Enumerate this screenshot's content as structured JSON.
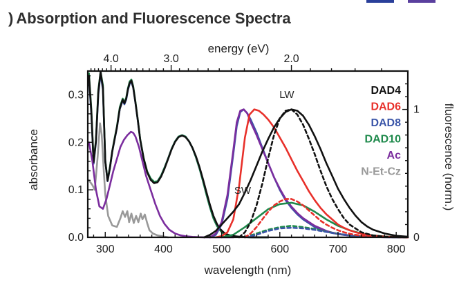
{
  "slide": {
    "title_prefix": ")",
    "title": "Absorption and Fluorescence Spectra"
  },
  "chart_data": {
    "type": "line",
    "xlabel": "wavelength (nm)",
    "x2label": "energy (eV)",
    "ylabel": "absorbance",
    "y2label": "fluorescence (norm.)",
    "xlim": [
      270,
      820
    ],
    "ylim": [
      0,
      0.35
    ],
    "y2lim": [
      0,
      1.3
    ],
    "x_ticks": [
      300,
      400,
      500,
      600,
      700,
      800
    ],
    "y_ticks": [
      0.0,
      0.1,
      0.2,
      0.3
    ],
    "y_tick_labels": [
      "0.0",
      "0.1",
      "0.2",
      "0.3"
    ],
    "y2_ticks": [
      0,
      1
    ],
    "energy_ticks": [
      4.0,
      3.0,
      2.0
    ],
    "energy_tick_labels": [
      "4.0",
      "3.0",
      "2.0"
    ],
    "energy_minor_ticks": [
      4.5,
      4.4,
      4.3,
      4.2,
      4.1,
      3.9,
      3.8,
      3.7,
      3.6,
      3.5,
      3.4,
      3.3,
      3.2,
      3.1,
      2.9,
      2.8,
      2.7,
      2.6,
      2.5,
      2.4,
      2.3,
      2.2,
      2.1,
      1.9,
      1.8,
      1.7,
      1.6,
      1.5
    ],
    "legend_position": "top-right",
    "legend": [
      {
        "label": "DAD4",
        "color": "#111111"
      },
      {
        "label": "DAD6",
        "color": "#e8302a"
      },
      {
        "label": "DAD8",
        "color": "#3a55a8"
      },
      {
        "label": "DAD10",
        "color": "#1f8a4c"
      },
      {
        "label": "Ac",
        "color": "#7b2d9e"
      },
      {
        "label": "N-Et-Cz",
        "color": "#999999"
      }
    ],
    "annotations": [
      {
        "text": "LW",
        "x": 612,
        "y2": 1.09
      },
      {
        "text": "SW",
        "x": 536,
        "y2": 0.34
      }
    ],
    "series": [
      {
        "name": "N-Et-Cz absorbance",
        "axis": "left",
        "color": "#999999",
        "dash": "",
        "x": [
          272,
          278,
          282,
          287,
          291,
          294,
          297,
          300,
          305,
          312,
          320,
          326,
          330,
          334,
          338,
          341,
          345,
          349,
          353,
          357,
          361,
          364,
          368,
          372,
          376,
          382,
          390,
          400,
          408
        ],
        "y": [
          0.12,
          0.11,
          0.1,
          0.17,
          0.24,
          0.215,
          0.15,
          0.09,
          0.045,
          0.025,
          0.022,
          0.04,
          0.055,
          0.043,
          0.055,
          0.032,
          0.05,
          0.03,
          0.045,
          0.032,
          0.05,
          0.038,
          0.048,
          0.03,
          0.015,
          0.008,
          0.004,
          0.002,
          0.0
        ]
      },
      {
        "name": "DAD8 absorbance",
        "axis": "left",
        "color": "#3a55a8",
        "dash": "",
        "x": [
          272,
          276,
          280,
          284,
          288,
          292,
          296,
          300,
          304,
          308,
          312,
          316,
          320,
          325,
          330,
          333,
          336,
          339,
          342,
          345,
          348,
          352,
          356,
          360,
          366,
          372,
          378,
          384,
          390,
          396,
          402,
          408,
          414,
          420,
          426,
          432,
          438,
          444,
          450,
          456,
          462,
          468,
          474,
          480,
          486,
          492,
          498,
          502,
          506,
          510,
          515,
          520,
          525,
          530,
          535,
          540,
          545,
          550,
          555,
          560,
          565,
          570,
          575,
          580
        ],
        "y": [
          0.335,
          0.26,
          0.155,
          0.2,
          0.3,
          0.345,
          0.31,
          0.16,
          0.118,
          0.145,
          0.18,
          0.205,
          0.23,
          0.27,
          0.288,
          0.28,
          0.29,
          0.31,
          0.323,
          0.327,
          0.315,
          0.282,
          0.245,
          0.205,
          0.165,
          0.138,
          0.123,
          0.116,
          0.118,
          0.13,
          0.147,
          0.166,
          0.186,
          0.202,
          0.212,
          0.215,
          0.212,
          0.202,
          0.188,
          0.168,
          0.145,
          0.118,
          0.09,
          0.063,
          0.04,
          0.024,
          0.014,
          0.009,
          0.006,
          0.004,
          0.003,
          0.002,
          0.0015,
          0.001,
          0.0008,
          0.0005,
          0.0003,
          0.0002,
          0.0001,
          0.0,
          0.0,
          0.0,
          0.0,
          0.0
        ]
      },
      {
        "name": "DAD10 absorbance",
        "axis": "left",
        "color": "#1f8a4c",
        "dash": "",
        "x": [
          272,
          276,
          280,
          284,
          288,
          292,
          296,
          300,
          304,
          308,
          312,
          316,
          320,
          325,
          330,
          333,
          336,
          339,
          342,
          345,
          348,
          352,
          356,
          360,
          366,
          372,
          378,
          384,
          390,
          396,
          402,
          408,
          414,
          420,
          426,
          432,
          438,
          444,
          450,
          456,
          462,
          468,
          474,
          480,
          486,
          492,
          498,
          502,
          506,
          510,
          515,
          520,
          525,
          530,
          535,
          540,
          545,
          550,
          555,
          560,
          565,
          570,
          575,
          580
        ],
        "y": [
          0.345,
          0.27,
          0.16,
          0.205,
          0.31,
          0.355,
          0.32,
          0.162,
          0.12,
          0.148,
          0.182,
          0.208,
          0.233,
          0.274,
          0.292,
          0.284,
          0.294,
          0.314,
          0.328,
          0.332,
          0.318,
          0.285,
          0.247,
          0.207,
          0.167,
          0.139,
          0.124,
          0.117,
          0.118,
          0.13,
          0.147,
          0.166,
          0.186,
          0.202,
          0.212,
          0.215,
          0.212,
          0.202,
          0.188,
          0.168,
          0.145,
          0.118,
          0.09,
          0.063,
          0.04,
          0.024,
          0.014,
          0.009,
          0.006,
          0.004,
          0.003,
          0.002,
          0.0015,
          0.001,
          0.0008,
          0.0005,
          0.0003,
          0.0002,
          0.0001,
          0.0,
          0.0,
          0.0,
          0.0,
          0.0
        ]
      },
      {
        "name": "DAD4 absorbance",
        "axis": "left",
        "color": "#111111",
        "dash": "",
        "x": [
          272,
          276,
          280,
          284,
          288,
          292,
          296,
          300,
          304,
          308,
          312,
          316,
          320,
          325,
          330,
          333,
          336,
          339,
          342,
          345,
          348,
          352,
          356,
          360,
          366,
          372,
          378,
          384,
          390,
          396,
          402,
          408,
          414,
          420,
          426,
          432,
          438,
          444,
          450,
          456,
          462,
          468,
          474,
          480,
          486,
          492,
          498,
          502,
          506,
          510,
          515,
          520,
          525,
          530,
          535,
          540,
          545,
          550,
          555,
          560,
          565,
          570,
          575,
          580
        ],
        "y": [
          0.34,
          0.265,
          0.158,
          0.202,
          0.305,
          0.35,
          0.315,
          0.16,
          0.119,
          0.146,
          0.181,
          0.206,
          0.231,
          0.271,
          0.29,
          0.282,
          0.292,
          0.312,
          0.325,
          0.33,
          0.316,
          0.283,
          0.246,
          0.206,
          0.166,
          0.137,
          0.121,
          0.114,
          0.116,
          0.128,
          0.145,
          0.165,
          0.185,
          0.201,
          0.211,
          0.214,
          0.211,
          0.202,
          0.188,
          0.17,
          0.148,
          0.122,
          0.095,
          0.068,
          0.045,
          0.028,
          0.017,
          0.012,
          0.008,
          0.006,
          0.004,
          0.003,
          0.002,
          0.0015,
          0.001,
          0.0008,
          0.0005,
          0.0003,
          0.0002,
          0.0001,
          0.0,
          0.0,
          0.0,
          0.0
        ]
      },
      {
        "name": "Ac absorbance",
        "axis": "left",
        "color": "#7b2d9e",
        "dash": "",
        "x": [
          272,
          278,
          284,
          290,
          296,
          302,
          308,
          314,
          320,
          326,
          332,
          338,
          344,
          348,
          352,
          358,
          364,
          370,
          378,
          386,
          394,
          402,
          410,
          420,
          430,
          440,
          450,
          460,
          470,
          480,
          490,
          500,
          510,
          520
        ],
        "y": [
          0.2,
          0.16,
          0.1,
          0.065,
          0.06,
          0.08,
          0.11,
          0.14,
          0.165,
          0.19,
          0.205,
          0.215,
          0.222,
          0.22,
          0.212,
          0.19,
          0.16,
          0.13,
          0.1,
          0.07,
          0.045,
          0.028,
          0.016,
          0.008,
          0.004,
          0.002,
          0.001,
          0.0005,
          0.0002,
          0.0001,
          0.0,
          0.0,
          0.0,
          0.0
        ]
      },
      {
        "name": "DAD8 fluorescence",
        "axis": "right",
        "color": "#3a55a8",
        "dash": "",
        "x": [
          480,
          490,
          500,
          510,
          520,
          526,
          532,
          538,
          544,
          550,
          560,
          570,
          580,
          590,
          600,
          610,
          620,
          630,
          640,
          650,
          660,
          670,
          680,
          690,
          700,
          710,
          720,
          730,
          740,
          750,
          760,
          780,
          800,
          820
        ],
        "y": [
          0.0,
          0.02,
          0.1,
          0.3,
          0.65,
          0.87,
          0.98,
          1.0,
          0.97,
          0.92,
          0.82,
          0.7,
          0.58,
          0.47,
          0.37,
          0.29,
          0.23,
          0.18,
          0.14,
          0.11,
          0.08,
          0.06,
          0.045,
          0.034,
          0.026,
          0.019,
          0.014,
          0.01,
          0.007,
          0.005,
          0.003,
          0.001,
          0.0,
          0.0
        ]
      },
      {
        "name": "Ac fluorescence",
        "axis": "right",
        "color": "#7b2d9e",
        "dash": "",
        "x": [
          480,
          490,
          500,
          510,
          520,
          526,
          532,
          538,
          544,
          550,
          560,
          570,
          580,
          590,
          600,
          610,
          620,
          630,
          640,
          650,
          660,
          670,
          680,
          690,
          700,
          710,
          720,
          730,
          740,
          750,
          760,
          780,
          800,
          820
        ],
        "y": [
          0.0,
          0.03,
          0.12,
          0.33,
          0.68,
          0.9,
          0.99,
          1.0,
          0.97,
          0.9,
          0.8,
          0.69,
          0.58,
          0.47,
          0.38,
          0.3,
          0.24,
          0.19,
          0.15,
          0.12,
          0.09,
          0.07,
          0.05,
          0.037,
          0.028,
          0.02,
          0.015,
          0.011,
          0.008,
          0.005,
          0.003,
          0.001,
          0.0,
          0.0
        ]
      },
      {
        "name": "DAD10 fluorescence",
        "axis": "right",
        "color": "#1f8a4c",
        "dash": "",
        "x": [
          500,
          520,
          540,
          560,
          580,
          600,
          620,
          640,
          660,
          680,
          700,
          720,
          740,
          760,
          780,
          800,
          820
        ],
        "y": [
          0.0,
          0.02,
          0.08,
          0.15,
          0.22,
          0.26,
          0.27,
          0.25,
          0.2,
          0.14,
          0.09,
          0.055,
          0.03,
          0.015,
          0.007,
          0.003,
          0.0
        ]
      },
      {
        "name": "DAD10 fluorescence (dashed)",
        "axis": "right",
        "color": "#1f8a4c",
        "dash": "5,4",
        "x": [
          540,
          560,
          580,
          600,
          620,
          640,
          660,
          680,
          700,
          720,
          740,
          760,
          780,
          800,
          820
        ],
        "y": [
          0.0,
          0.03,
          0.06,
          0.08,
          0.09,
          0.08,
          0.065,
          0.045,
          0.028,
          0.015,
          0.008,
          0.004,
          0.002,
          0.0,
          0.0
        ]
      },
      {
        "name": "DAD8 fluorescence (dashed)",
        "axis": "right",
        "color": "#3a55a8",
        "dash": "5,4",
        "x": [
          540,
          560,
          580,
          600,
          620,
          640,
          660,
          680,
          700,
          720,
          740,
          760,
          780,
          800,
          820
        ],
        "y": [
          0.0,
          0.02,
          0.05,
          0.07,
          0.075,
          0.07,
          0.058,
          0.042,
          0.028,
          0.016,
          0.008,
          0.004,
          0.002,
          0.0,
          0.0
        ]
      },
      {
        "name": "DAD6 fluorescence (dashed)",
        "axis": "right",
        "color": "#e8302a",
        "dash": "5,4",
        "x": [
          540,
          550,
          560,
          570,
          580,
          590,
          600,
          610,
          620,
          630,
          640,
          650,
          660,
          670,
          680,
          690,
          700,
          710,
          720,
          730,
          740,
          760,
          780,
          800,
          820
        ],
        "y": [
          0.0,
          0.03,
          0.08,
          0.14,
          0.2,
          0.25,
          0.28,
          0.3,
          0.3,
          0.28,
          0.25,
          0.21,
          0.17,
          0.13,
          0.1,
          0.075,
          0.055,
          0.04,
          0.028,
          0.02,
          0.013,
          0.006,
          0.003,
          0.001,
          0.0
        ]
      },
      {
        "name": "DAD6 fluorescence",
        "axis": "right",
        "color": "#e8302a",
        "dash": "",
        "x": [
          490,
          500,
          510,
          520,
          530,
          540,
          548,
          556,
          564,
          572,
          580,
          590,
          600,
          610,
          620,
          630,
          640,
          650,
          660,
          670,
          680,
          690,
          700,
          710,
          720,
          730,
          740,
          750,
          760,
          780,
          800,
          820
        ],
        "y": [
          0.0,
          0.01,
          0.04,
          0.14,
          0.4,
          0.78,
          0.96,
          1.0,
          0.99,
          0.96,
          0.92,
          0.86,
          0.78,
          0.7,
          0.61,
          0.52,
          0.44,
          0.36,
          0.29,
          0.23,
          0.18,
          0.14,
          0.1,
          0.075,
          0.055,
          0.04,
          0.028,
          0.02,
          0.014,
          0.006,
          0.002,
          0.0
        ]
      },
      {
        "name": "DAD4 fluorescence (dashed)",
        "axis": "right",
        "color": "#111111",
        "dash": "5,4",
        "x": [
          530,
          540,
          550,
          560,
          570,
          580,
          590,
          600,
          610,
          620,
          630,
          640,
          650,
          660,
          670,
          680,
          690,
          700,
          710,
          720,
          740,
          760,
          780,
          800,
          820
        ],
        "y": [
          0.0,
          0.04,
          0.12,
          0.25,
          0.42,
          0.62,
          0.8,
          0.93,
          0.99,
          1.0,
          0.96,
          0.88,
          0.77,
          0.65,
          0.52,
          0.4,
          0.3,
          0.22,
          0.15,
          0.1,
          0.04,
          0.015,
          0.005,
          0.001,
          0.0
        ]
      },
      {
        "name": "DAD4 fluorescence",
        "axis": "right",
        "color": "#111111",
        "dash": "",
        "x": [
          470,
          480,
          490,
          500,
          510,
          520,
          530,
          540,
          550,
          560,
          570,
          580,
          590,
          600,
          610,
          620,
          630,
          640,
          650,
          660,
          670,
          680,
          690,
          700,
          710,
          720,
          730,
          740,
          750,
          760,
          780,
          800,
          820
        ],
        "y": [
          0.0,
          0.02,
          0.05,
          0.1,
          0.15,
          0.2,
          0.26,
          0.35,
          0.45,
          0.56,
          0.67,
          0.77,
          0.86,
          0.93,
          0.98,
          1.0,
          0.99,
          0.95,
          0.88,
          0.79,
          0.69,
          0.58,
          0.48,
          0.38,
          0.3,
          0.23,
          0.17,
          0.12,
          0.085,
          0.06,
          0.03,
          0.012,
          0.005
        ]
      }
    ]
  }
}
